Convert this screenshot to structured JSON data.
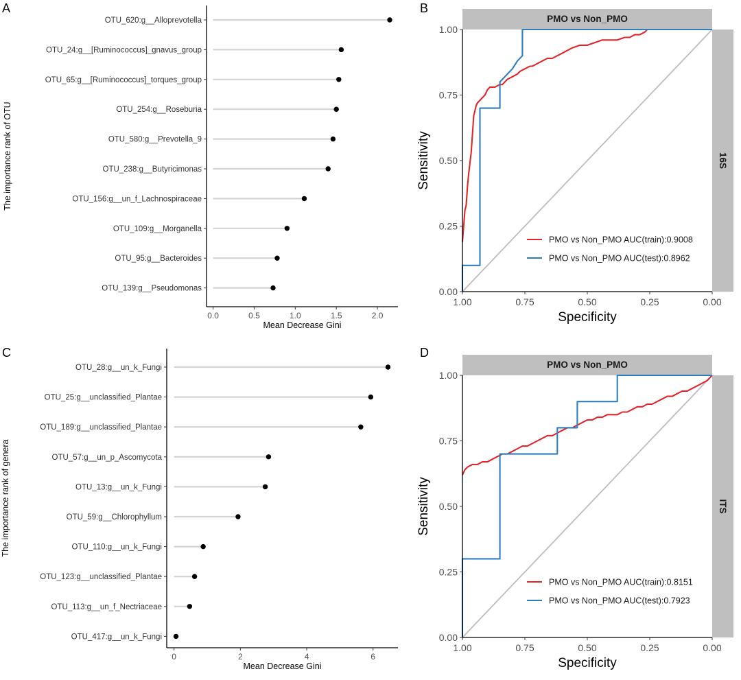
{
  "panels": {
    "A": {
      "letter": "A",
      "xlabel": "Mean Decrease Gini",
      "ylabel": "The importance rank of OTU"
    },
    "B": {
      "letter": "B",
      "strip_title": "PMO vs Non_PMO",
      "side_label": "16S",
      "xlabel": "Specificity",
      "ylabel": "Sensitivity"
    },
    "C": {
      "letter": "C",
      "xlabel": "Mean Decrease Gini",
      "ylabel": "The importance rank of genera"
    },
    "D": {
      "letter": "D",
      "strip_title": "PMO vs Non_PMO",
      "side_label": "ITS",
      "xlabel": "Specificity",
      "ylabel": "Sensitivity"
    }
  },
  "colors": {
    "train": "#e0262b",
    "test": "#2f7dbd",
    "diagonal": "#bdbdbd",
    "lollipop": "#d3d3d3",
    "strip": "#bfbfbf"
  },
  "chart_data": [
    {
      "panel": "A",
      "type": "lollipop",
      "xlabel": "Mean Decrease Gini",
      "ylabel": "The importance rank of OTU",
      "xlim": [
        -0.08,
        2.25
      ],
      "xticks": [
        0.0,
        0.5,
        1.0,
        1.5,
        2.0
      ],
      "xtick_labels": [
        "0.0",
        "0.5",
        "1.0",
        "1.5",
        "2.0"
      ],
      "categories": [
        "OTU_620:g__Alloprevotella",
        "OTU_24:g__[Ruminococcus]_gnavus_group",
        "OTU_65:g__[Ruminococcus]_torques_group",
        "OTU_254:g__Roseburia",
        "OTU_580:g__Prevotella_9",
        "OTU_238:g__Butyricimonas",
        "OTU_156:g__un_f_Lachnospiraceae",
        "OTU_109:g__Morganella",
        "OTU_95:g__Bacteroides",
        "OTU_139:g__Pseudomonas"
      ],
      "values": [
        2.15,
        1.56,
        1.53,
        1.5,
        1.46,
        1.4,
        1.11,
        0.9,
        0.78,
        0.73
      ]
    },
    {
      "panel": "B",
      "type": "line",
      "title": "PMO vs Non_PMO",
      "facet": "16S",
      "xlabel": "Specificity",
      "ylabel": "Sensitivity",
      "xlim": [
        1.0,
        0.0
      ],
      "ylim": [
        0.0,
        1.0
      ],
      "xticks": [
        1.0,
        0.75,
        0.5,
        0.25,
        0.0
      ],
      "xtick_labels": [
        "1.00",
        "0.75",
        "0.50",
        "0.25",
        "0.00"
      ],
      "yticks": [
        0.0,
        0.25,
        0.5,
        0.75,
        1.0
      ],
      "ytick_labels": [
        "0.00",
        "0.25",
        "0.50",
        "0.75",
        "1.00"
      ],
      "legend_position": "bottom-right",
      "series": [
        {
          "name": "PMO vs Non_PMO AUC(train):0.9008",
          "color_key": "train",
          "x": [
            1.0,
            0.995,
            0.99,
            0.985,
            0.98,
            0.975,
            0.97,
            0.965,
            0.96,
            0.955,
            0.95,
            0.945,
            0.94,
            0.93,
            0.92,
            0.91,
            0.9,
            0.89,
            0.88,
            0.87,
            0.85,
            0.84,
            0.83,
            0.82,
            0.8,
            0.78,
            0.77,
            0.75,
            0.73,
            0.72,
            0.7,
            0.68,
            0.66,
            0.64,
            0.62,
            0.6,
            0.58,
            0.56,
            0.53,
            0.5,
            0.47,
            0.44,
            0.41,
            0.38,
            0.35,
            0.33,
            0.31,
            0.29,
            0.27,
            0.26,
            0.25,
            0.0
          ],
          "y": [
            0.19,
            0.25,
            0.31,
            0.33,
            0.4,
            0.45,
            0.49,
            0.53,
            0.6,
            0.67,
            0.69,
            0.71,
            0.72,
            0.73,
            0.74,
            0.75,
            0.77,
            0.78,
            0.78,
            0.78,
            0.79,
            0.79,
            0.8,
            0.81,
            0.82,
            0.83,
            0.84,
            0.85,
            0.86,
            0.86,
            0.87,
            0.88,
            0.89,
            0.89,
            0.9,
            0.91,
            0.92,
            0.93,
            0.94,
            0.94,
            0.95,
            0.96,
            0.96,
            0.96,
            0.97,
            0.97,
            0.98,
            0.98,
            0.99,
            1.0,
            1.0,
            1.0
          ]
        },
        {
          "name": "PMO vs Non_PMO AUC(test):0.8962",
          "color_key": "test",
          "x": [
            1.0,
            1.0,
            0.93,
            0.93,
            0.93,
            0.93,
            0.85,
            0.85,
            0.85,
            0.85,
            0.8,
            0.78,
            0.76,
            0.76,
            0.76,
            0.0
          ],
          "y": [
            0.0,
            0.1,
            0.1,
            0.1,
            0.7,
            0.7,
            0.7,
            0.8,
            0.8,
            0.8,
            0.85,
            0.88,
            0.9,
            1.0,
            1.0,
            1.0
          ]
        }
      ]
    },
    {
      "panel": "C",
      "type": "lollipop",
      "xlabel": "Mean Decrease Gini",
      "ylabel": "The importance rank of genera",
      "xlim": [
        -0.22,
        6.75
      ],
      "xticks": [
        0,
        2,
        4,
        6
      ],
      "xtick_labels": [
        "0",
        "2",
        "4",
        "6"
      ],
      "categories": [
        "OTU_28:g__un_k_Fungi",
        "OTU_25:g__unclassified_Plantae",
        "OTU_189:g__unclassified_Plantae",
        "OTU_57:g__un_p_Ascomycota",
        "OTU_13:g__un_k_Fungi",
        "OTU_59:g__Chlorophyllum",
        "OTU_110:g__un_k_Fungi",
        "OTU_123:g__unclassified_Plantae",
        "OTU_113:g__un_f_Nectriaceae",
        "OTU_417:g__un_k_Fungi"
      ],
      "values": [
        6.45,
        5.93,
        5.63,
        2.85,
        2.75,
        1.93,
        0.88,
        0.62,
        0.47,
        0.06
      ]
    },
    {
      "panel": "D",
      "type": "line",
      "title": "PMO vs Non_PMO",
      "facet": "ITS",
      "xlabel": "Specificity",
      "ylabel": "Sensitivity",
      "xlim": [
        1.0,
        0.0
      ],
      "ylim": [
        0.0,
        1.0
      ],
      "xticks": [
        1.0,
        0.75,
        0.5,
        0.25,
        0.0
      ],
      "xtick_labels": [
        "1.00",
        "0.75",
        "0.50",
        "0.25",
        "0.00"
      ],
      "yticks": [
        0.0,
        0.25,
        0.5,
        0.75,
        1.0
      ],
      "ytick_labels": [
        "0.00",
        "0.25",
        "0.50",
        "0.75",
        "1.00"
      ],
      "legend_position": "bottom-right",
      "series": [
        {
          "name": "PMO vs Non_PMO AUC(train):0.8151",
          "color_key": "train",
          "x": [
            1.0,
            0.99,
            0.98,
            0.96,
            0.94,
            0.92,
            0.9,
            0.88,
            0.86,
            0.84,
            0.82,
            0.8,
            0.78,
            0.76,
            0.74,
            0.72,
            0.7,
            0.68,
            0.66,
            0.64,
            0.62,
            0.6,
            0.58,
            0.56,
            0.54,
            0.52,
            0.5,
            0.48,
            0.46,
            0.44,
            0.42,
            0.4,
            0.38,
            0.36,
            0.34,
            0.32,
            0.3,
            0.28,
            0.26,
            0.24,
            0.22,
            0.2,
            0.18,
            0.16,
            0.14,
            0.12,
            0.1,
            0.08,
            0.06,
            0.04,
            0.02,
            0.0
          ],
          "y": [
            0.62,
            0.64,
            0.65,
            0.66,
            0.66,
            0.67,
            0.67,
            0.68,
            0.69,
            0.7,
            0.7,
            0.71,
            0.72,
            0.73,
            0.73,
            0.74,
            0.75,
            0.76,
            0.77,
            0.77,
            0.78,
            0.79,
            0.8,
            0.8,
            0.81,
            0.82,
            0.83,
            0.83,
            0.84,
            0.84,
            0.85,
            0.85,
            0.85,
            0.86,
            0.86,
            0.87,
            0.88,
            0.88,
            0.89,
            0.89,
            0.9,
            0.91,
            0.92,
            0.92,
            0.93,
            0.94,
            0.94,
            0.95,
            0.96,
            0.97,
            0.98,
            1.0
          ]
        },
        {
          "name": "PMO vs Non_PMO AUC(test):0.7923",
          "color_key": "test",
          "x": [
            1.0,
            1.0,
            0.85,
            0.85,
            0.62,
            0.62,
            0.54,
            0.54,
            0.38,
            0.38,
            0.0
          ],
          "y": [
            0.0,
            0.3,
            0.3,
            0.7,
            0.7,
            0.8,
            0.8,
            0.9,
            0.9,
            1.0,
            1.0
          ]
        }
      ]
    }
  ]
}
